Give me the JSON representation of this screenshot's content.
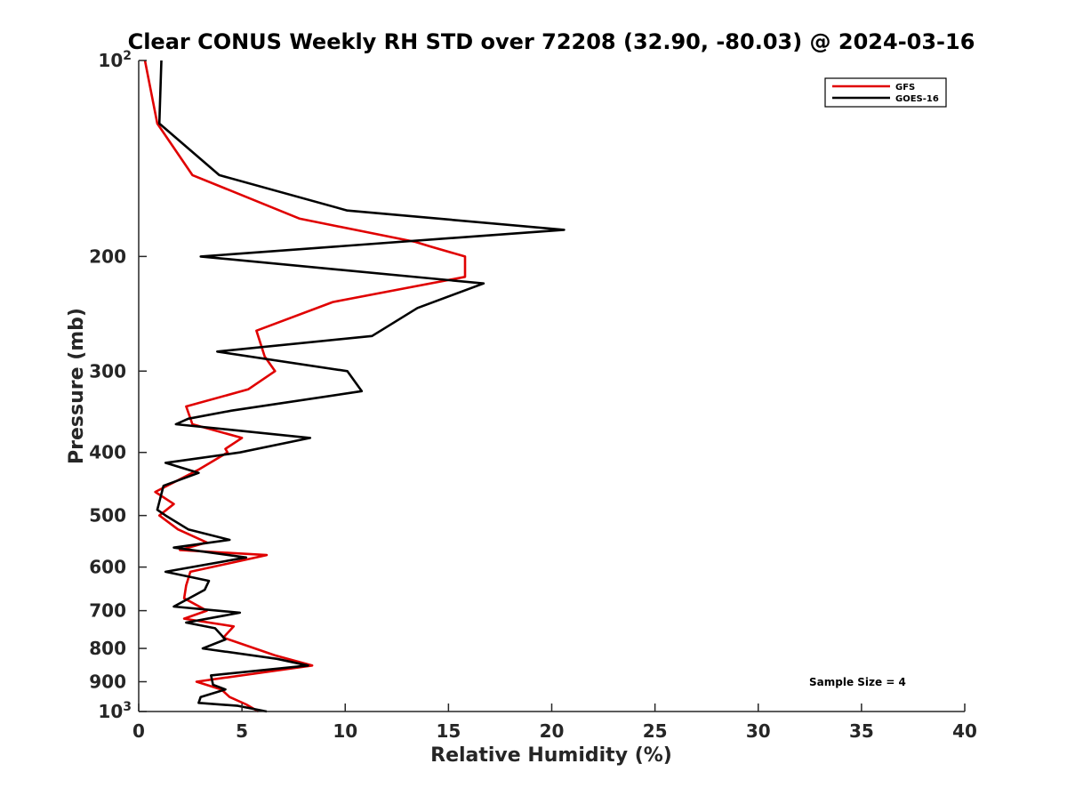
{
  "chart_data": {
    "type": "line",
    "title": "Clear CONUS Weekly RH STD over 72208 (32.90, -80.03) @ 2024-03-16",
    "xlabel": "Relative Humidity (%)",
    "ylabel": "Pressure (mb)",
    "xlim": [
      0,
      40
    ],
    "ylim": [
      100,
      1000
    ],
    "yscale": "log",
    "y_reversed": true,
    "grid": false,
    "legend_position": "top-right",
    "x_ticks": [
      0,
      5,
      10,
      15,
      20,
      25,
      30,
      35,
      40
    ],
    "y_ticks": [
      {
        "value": 100,
        "label": "10",
        "exp": "2"
      },
      {
        "value": 200,
        "label": "200"
      },
      {
        "value": 300,
        "label": "300"
      },
      {
        "value": 400,
        "label": "400"
      },
      {
        "value": 500,
        "label": "500"
      },
      {
        "value": 600,
        "label": "600"
      },
      {
        "value": 700,
        "label": "700"
      },
      {
        "value": 800,
        "label": "800"
      },
      {
        "value": 900,
        "label": "900"
      },
      {
        "value": 1000,
        "label": "10",
        "exp": "3"
      }
    ],
    "annotation": "Sample Size = 4",
    "series": [
      {
        "name": "GFS",
        "color": "#e00000",
        "points": [
          [
            0.3,
            100
          ],
          [
            0.9,
            125
          ],
          [
            2.6,
            150
          ],
          [
            7.8,
            175
          ],
          [
            13.4,
            190
          ],
          [
            14.1,
            193
          ],
          [
            15.8,
            200
          ],
          [
            15.8,
            215
          ],
          [
            9.4,
            235
          ],
          [
            5.7,
            260
          ],
          [
            6.1,
            285
          ],
          [
            6.6,
            300
          ],
          [
            5.3,
            320
          ],
          [
            2.3,
            340
          ],
          [
            2.6,
            362
          ],
          [
            5.0,
            380
          ],
          [
            4.2,
            395
          ],
          [
            4.3,
            400
          ],
          [
            2.9,
            425
          ],
          [
            0.8,
            460
          ],
          [
            1.7,
            480
          ],
          [
            1.0,
            500
          ],
          [
            1.9,
            525
          ],
          [
            3.3,
            550
          ],
          [
            2.0,
            565
          ],
          [
            6.2,
            575
          ],
          [
            2.5,
            610
          ],
          [
            2.3,
            640
          ],
          [
            2.2,
            670
          ],
          [
            3.3,
            700
          ],
          [
            2.2,
            720
          ],
          [
            4.6,
            740
          ],
          [
            4.1,
            770
          ],
          [
            6.6,
            820
          ],
          [
            8.4,
            850
          ],
          [
            2.8,
            900
          ],
          [
            4.0,
            925
          ],
          [
            4.4,
            950
          ],
          [
            5.2,
            975
          ],
          [
            5.8,
            1000
          ]
        ]
      },
      {
        "name": "GOES-16",
        "color": "#000000",
        "points": [
          [
            1.1,
            100
          ],
          [
            1.0,
            125
          ],
          [
            3.9,
            150
          ],
          [
            10.1,
            170
          ],
          [
            20.6,
            182
          ],
          [
            3.0,
            200
          ],
          [
            16.7,
            220
          ],
          [
            13.5,
            240
          ],
          [
            11.3,
            265
          ],
          [
            3.8,
            280
          ],
          [
            10.1,
            300
          ],
          [
            10.8,
            322
          ],
          [
            4.5,
            345
          ],
          [
            2.4,
            355
          ],
          [
            1.8,
            362
          ],
          [
            8.3,
            380
          ],
          [
            4.9,
            400
          ],
          [
            1.3,
            415
          ],
          [
            2.9,
            430
          ],
          [
            1.2,
            450
          ],
          [
            0.9,
            490
          ],
          [
            1.3,
            500
          ],
          [
            2.4,
            525
          ],
          [
            4.4,
            545
          ],
          [
            1.7,
            560
          ],
          [
            5.2,
            580
          ],
          [
            1.3,
            610
          ],
          [
            3.4,
            630
          ],
          [
            3.2,
            650
          ],
          [
            1.7,
            690
          ],
          [
            4.9,
            705
          ],
          [
            2.3,
            730
          ],
          [
            3.7,
            745
          ],
          [
            4.2,
            775
          ],
          [
            3.1,
            800
          ],
          [
            6.7,
            830
          ],
          [
            8.2,
            850
          ],
          [
            3.5,
            880
          ],
          [
            3.6,
            910
          ],
          [
            4.2,
            925
          ],
          [
            3.0,
            950
          ],
          [
            2.9,
            970
          ],
          [
            4.8,
            980
          ],
          [
            6.2,
            1000
          ]
        ]
      }
    ]
  }
}
